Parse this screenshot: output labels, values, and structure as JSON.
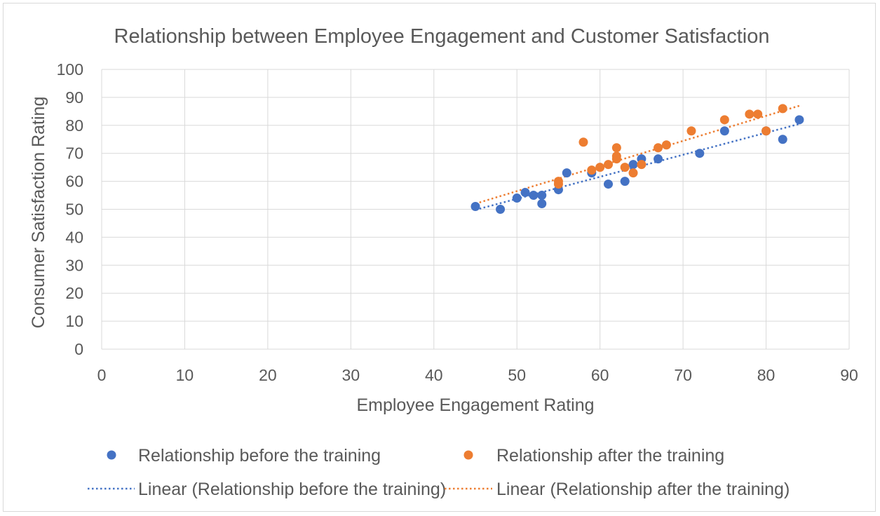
{
  "chart_data": {
    "type": "scatter",
    "title": "Relationship between Employee Engagement and Customer Satisfaction",
    "xlabel": "Employee Engagement  Rating",
    "ylabel": "Consumer Satisfaction Rating",
    "xlim": [
      0,
      90
    ],
    "ylim": [
      0,
      100
    ],
    "xticks": [
      0,
      10,
      20,
      30,
      40,
      50,
      60,
      70,
      80,
      90
    ],
    "yticks": [
      0,
      10,
      20,
      30,
      40,
      50,
      60,
      70,
      80,
      90,
      100
    ],
    "grid": true,
    "legend_position": "bottom",
    "series": [
      {
        "name": "Relationship before the training",
        "color": "#4472C4",
        "points": [
          [
            45,
            51
          ],
          [
            48,
            50
          ],
          [
            50,
            54
          ],
          [
            51,
            56
          ],
          [
            52,
            55
          ],
          [
            53,
            55
          ],
          [
            53,
            52
          ],
          [
            55,
            57
          ],
          [
            56,
            63
          ],
          [
            59,
            63
          ],
          [
            61,
            59
          ],
          [
            63,
            60
          ],
          [
            64,
            66
          ],
          [
            65,
            68
          ],
          [
            67,
            68
          ],
          [
            72,
            70
          ],
          [
            75,
            78
          ],
          [
            80,
            78
          ],
          [
            82,
            75
          ],
          [
            84,
            82
          ]
        ],
        "trendline": {
          "name": "Linear (Relationship before the training)",
          "start": [
            45,
            49.8
          ],
          "end": [
            84,
            80.5
          ]
        }
      },
      {
        "name": "Relationship after the training",
        "color": "#ED7D31",
        "points": [
          [
            55,
            59
          ],
          [
            55,
            60
          ],
          [
            58,
            74
          ],
          [
            59,
            64
          ],
          [
            60,
            65
          ],
          [
            61,
            66
          ],
          [
            62,
            68
          ],
          [
            62,
            69
          ],
          [
            62,
            72
          ],
          [
            63,
            65
          ],
          [
            64,
            63
          ],
          [
            65,
            66
          ],
          [
            67,
            72
          ],
          [
            68,
            73
          ],
          [
            71,
            78
          ],
          [
            75,
            82
          ],
          [
            78,
            84
          ],
          [
            79,
            84
          ],
          [
            80,
            78
          ],
          [
            82,
            86
          ]
        ],
        "trendline": {
          "name": "Linear (Relationship after the training)",
          "start": [
            45,
            52
          ],
          "end": [
            84,
            87
          ]
        }
      }
    ]
  }
}
